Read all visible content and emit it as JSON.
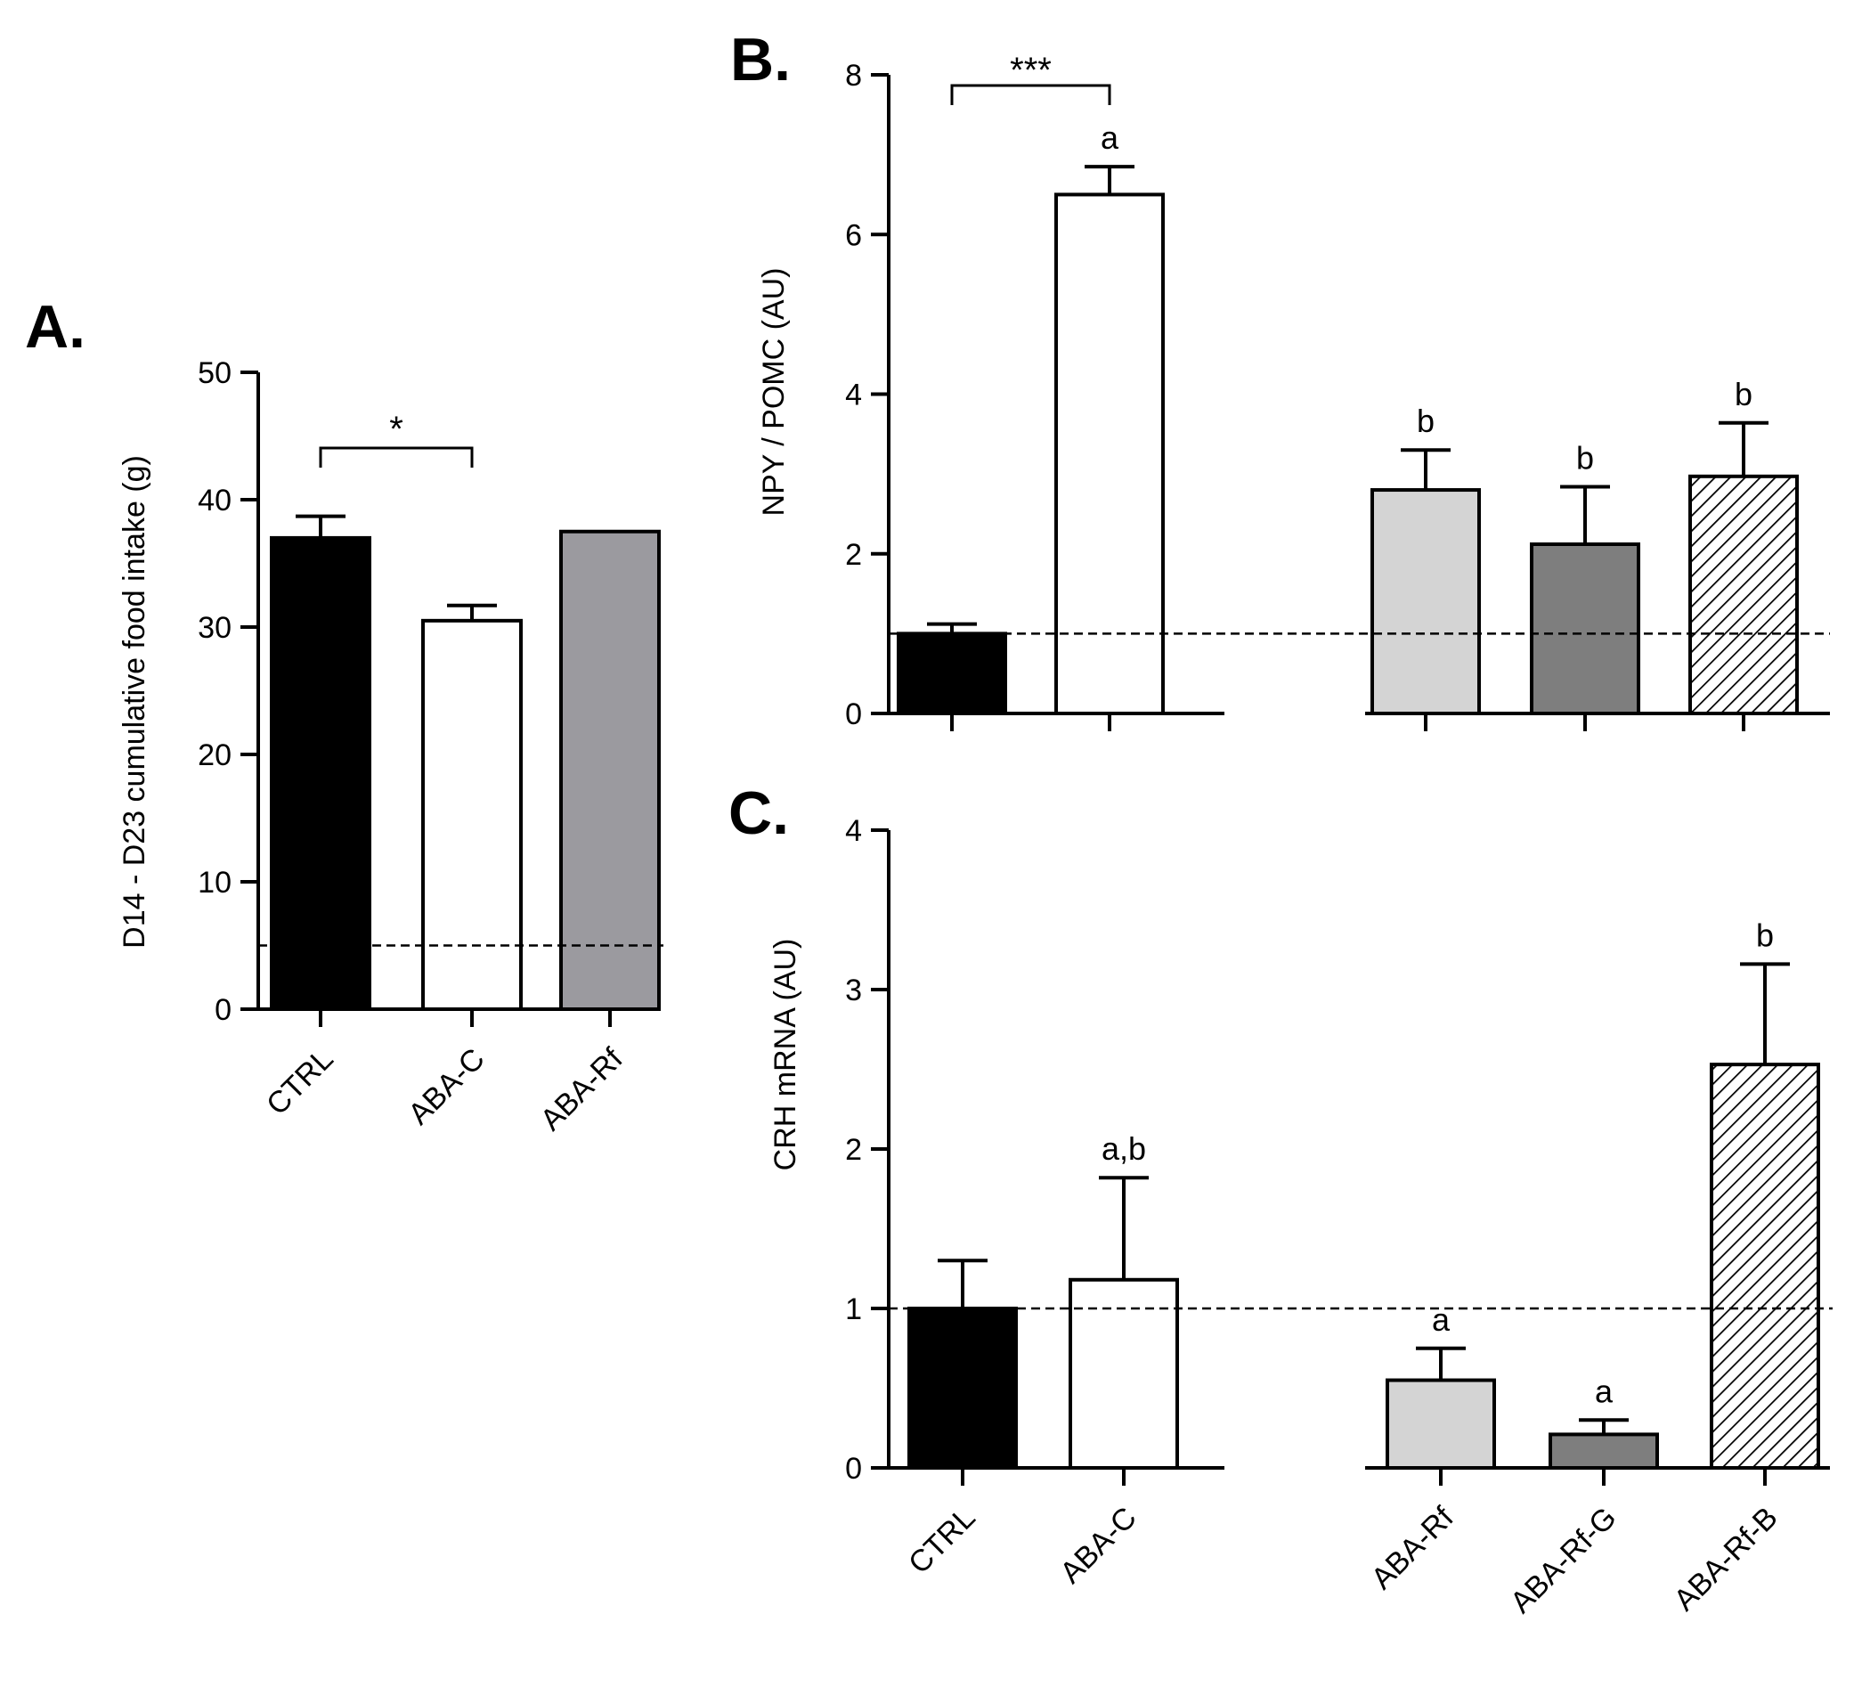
{
  "colors": {
    "black": "#000000",
    "white": "#ffffff",
    "mid_gray": "#9b9a9f",
    "light_gray": "#d4d4d4",
    "dark_gray": "#7e7e7e"
  },
  "chart_data": [
    {
      "panel": "A.",
      "type": "bar",
      "categories": [
        "CTRL",
        "ABA-C",
        "ABA-Rf"
      ],
      "values": [
        37,
        30.5,
        37.5
      ],
      "errors": [
        1.7,
        1.2,
        0
      ],
      "fills": [
        "black",
        "white",
        "mid_gray"
      ],
      "ylabel": "D14 - D23 cumulative food intake (g)",
      "ylim": [
        0,
        50
      ],
      "yticks": [
        0,
        10,
        20,
        30,
        40,
        50
      ],
      "reference_line": 5,
      "significance": [
        {
          "from": 0,
          "to": 1,
          "label": "*"
        }
      ],
      "letters": [
        "",
        "",
        ""
      ]
    },
    {
      "panel": "B.",
      "type": "bar",
      "categories": [
        "CTRL",
        "ABA-C",
        "ABA-Rf",
        "ABA-Rf-G",
        "ABA-Rf-B"
      ],
      "values": [
        1.0,
        6.5,
        2.8,
        2.12,
        2.97
      ],
      "errors": [
        0.12,
        0.35,
        0.5,
        0.72,
        0.67
      ],
      "fills": [
        "black",
        "white",
        "light_gray",
        "dark_gray",
        "hatch"
      ],
      "ylabel": "NPY / POMC (AU)",
      "ylim": [
        0,
        8
      ],
      "yticks": [
        0,
        2,
        4,
        6,
        8
      ],
      "reference_line": 1,
      "significance": [
        {
          "from": 0,
          "to": 1,
          "label": "***"
        }
      ],
      "letters": [
        "",
        "a",
        "b",
        "b",
        "b"
      ]
    },
    {
      "panel": "C.",
      "type": "bar",
      "categories": [
        "CTRL",
        "ABA-C",
        "ABA-Rf",
        "ABA-Rf-G",
        "ABA-Rf-B"
      ],
      "values": [
        1.0,
        1.18,
        0.55,
        0.21,
        2.53
      ],
      "errors": [
        0.3,
        0.64,
        0.2,
        0.09,
        0.63
      ],
      "fills": [
        "black",
        "white",
        "light_gray",
        "dark_gray",
        "hatch"
      ],
      "ylabel": "CRH mRNA (AU)",
      "ylim": [
        0,
        4
      ],
      "yticks": [
        0,
        1,
        2,
        3,
        4
      ],
      "reference_line": 1,
      "significance": [],
      "letters": [
        "",
        "a,b",
        "a",
        "a",
        "b"
      ]
    }
  ]
}
